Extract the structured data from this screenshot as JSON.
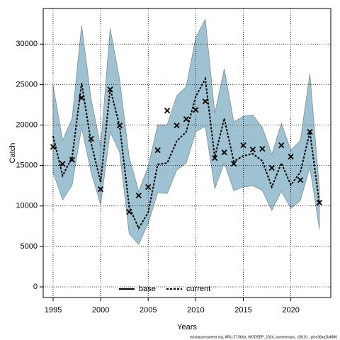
{
  "chart_data": {
    "type": "line",
    "x_label": "Years",
    "y_label": "Catch",
    "footer": "stockassessment.org, ARU.27.5b6a_WGDEEP_2024_summersurv, r18101 , git:e38aa2b4986",
    "x": [
      1995,
      1996,
      1997,
      1998,
      1999,
      2000,
      2001,
      2002,
      2003,
      2004,
      2005,
      2006,
      2007,
      2008,
      2009,
      2010,
      2011,
      2012,
      2013,
      2014,
      2015,
      2016,
      2017,
      2018,
      2019,
      2020,
      2021,
      2022,
      2023
    ],
    "series": [
      {
        "name": "current",
        "color": "#000000",
        "dashed": true,
        "values": [
          18630,
          13740,
          16010,
          25200,
          17760,
          12950,
          24500,
          19860,
          9890,
          7260,
          9190,
          15140,
          15310,
          18020,
          19160,
          23530,
          25720,
          16010,
          20820,
          15490,
          16190,
          16450,
          15570,
          12340,
          15310,
          12600,
          14170,
          19160,
          10320
        ]
      }
    ],
    "legend_entries": [
      {
        "name": "base",
        "color": "#000000",
        "dashed": false
      },
      {
        "name": "current",
        "color": "#000000",
        "dashed": true
      }
    ],
    "observed": {
      "color": "#000000",
      "values": [
        17300,
        15200,
        15700,
        23360,
        18300,
        12070,
        24400,
        19950,
        9270,
        11290,
        12340,
        16890,
        21790,
        19950,
        20730,
        21870,
        22920,
        15920,
        16620,
        15220,
        17500,
        16970,
        17060,
        14700,
        17500,
        16100,
        13210,
        19160,
        10410
      ]
    },
    "band": {
      "color": "#9fc2d2",
      "edge": "#7a8e98",
      "upper": [
        24850,
        18110,
        20820,
        32280,
        23180,
        17320,
        31930,
        25550,
        16010,
        11810,
        14870,
        20030,
        20030,
        23620,
        24760,
        30800,
        33070,
        21430,
        26950,
        20380,
        21080,
        21260,
        19690,
        16360,
        20210,
        16890,
        18110,
        26330,
        12160
      ],
      "lower": [
        14170,
        10760,
        12600,
        19690,
        14170,
        10150,
        19160,
        16620,
        6560,
        5250,
        7870,
        11640,
        11550,
        14440,
        15310,
        19160,
        19860,
        12160,
        15310,
        11900,
        12340,
        12510,
        11900,
        9450,
        11810,
        9710,
        10670,
        14790,
        7170
      ]
    },
    "xlim": [
      1993.96,
      2024.2
    ],
    "ylim": [
      -1310,
      34400
    ],
    "xticks": [
      1995,
      2000,
      2005,
      2010,
      2015,
      2020
    ],
    "yticks": [
      0,
      5000,
      10000,
      15000,
      20000,
      25000,
      30000
    ],
    "grid": true
  }
}
